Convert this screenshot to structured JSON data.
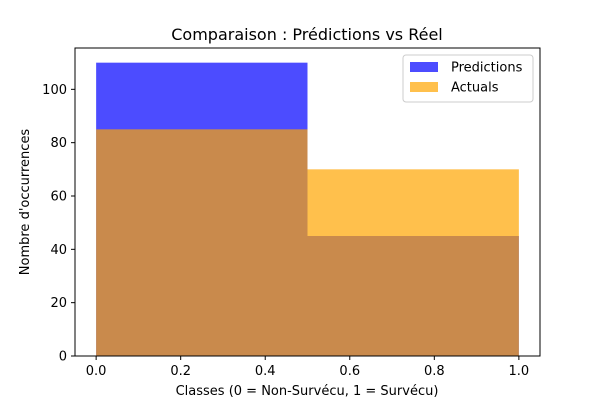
{
  "chart_data": {
    "type": "bar",
    "histogram": true,
    "title": "Comparaison : Prédictions vs Réel",
    "xlabel": "Classes (0 = Non-Survécu, 1 = Survécu)",
    "ylabel": "Nombre d'occurrences",
    "xlim": [
      -0.05,
      1.05
    ],
    "ylim": [
      0,
      115.5
    ],
    "bins": [
      [
        0.0,
        0.5
      ],
      [
        0.5,
        1.0
      ]
    ],
    "series": [
      {
        "name": "Predictions",
        "values": [
          110,
          45
        ],
        "color": "#0000ff",
        "alpha": 0.7
      },
      {
        "name": "Actuals",
        "values": [
          85,
          70
        ],
        "color": "#ffa500",
        "alpha": 0.7
      }
    ],
    "x_ticks": [
      "0.0",
      "0.2",
      "0.4",
      "0.6",
      "0.8",
      "1.0"
    ],
    "x_tick_values": [
      0,
      0.2,
      0.4,
      0.6,
      0.8,
      1.0
    ],
    "y_ticks": [
      "0",
      "20",
      "40",
      "60",
      "80",
      "100"
    ],
    "y_tick_values": [
      0,
      20,
      40,
      60,
      80,
      100
    ],
    "legend_position": "top-right",
    "grid": false
  }
}
